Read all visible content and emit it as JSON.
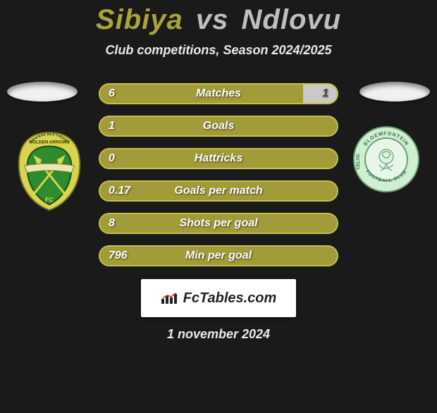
{
  "title": {
    "player1": "Sibiya",
    "vs": "vs",
    "player2": "Ndlovu"
  },
  "subtitle": "Club competitions, Season 2024/2025",
  "colors": {
    "p1_accent": "#a9a33a",
    "p2_accent": "#bfbfbf",
    "bg": "#1a1a1a",
    "bar_border": "#c7c14a",
    "fill_p1": "#a19b39",
    "fill_p2": "#c9c9c9"
  },
  "badges": {
    "left": {
      "name": "golden-arrows-crest",
      "shield_fill": "#2e8b2e",
      "ring_fill": "#d9d44f",
      "text_top": "LAMONTVILLE",
      "text_mid": "GOLDEN ARROWS",
      "banner_text": "ABAFANA BES'THENDE",
      "fc_text": "FC"
    },
    "right": {
      "name": "bloemfontein-celtic-crest",
      "ring_fill": "#cfeed2",
      "inner_fill": "#e8f5e9",
      "ring_text_top": "BLOEMFONTEIN",
      "ring_side_left": "CELTIC",
      "ring_text_bottom": "FOOTBALL CLUB"
    }
  },
  "stats": [
    {
      "label": "Matches",
      "left_val": "6",
      "right_val": "1",
      "left_pct": 85.7,
      "right_pct": 14.3,
      "show_right": true
    },
    {
      "label": "Goals",
      "left_val": "1",
      "right_val": "",
      "left_pct": 100,
      "right_pct": 0,
      "show_right": false
    },
    {
      "label": "Hattricks",
      "left_val": "0",
      "right_val": "",
      "left_pct": 100,
      "right_pct": 0,
      "show_right": false
    },
    {
      "label": "Goals per match",
      "left_val": "0.17",
      "right_val": "",
      "left_pct": 100,
      "right_pct": 0,
      "show_right": false
    },
    {
      "label": "Shots per goal",
      "left_val": "8",
      "right_val": "",
      "left_pct": 100,
      "right_pct": 0,
      "show_right": false
    },
    {
      "label": "Min per goal",
      "left_val": "796",
      "right_val": "",
      "left_pct": 100,
      "right_pct": 0,
      "show_right": false
    }
  ],
  "footer": {
    "brand": "FcTables.com",
    "date": "1 november 2024"
  }
}
